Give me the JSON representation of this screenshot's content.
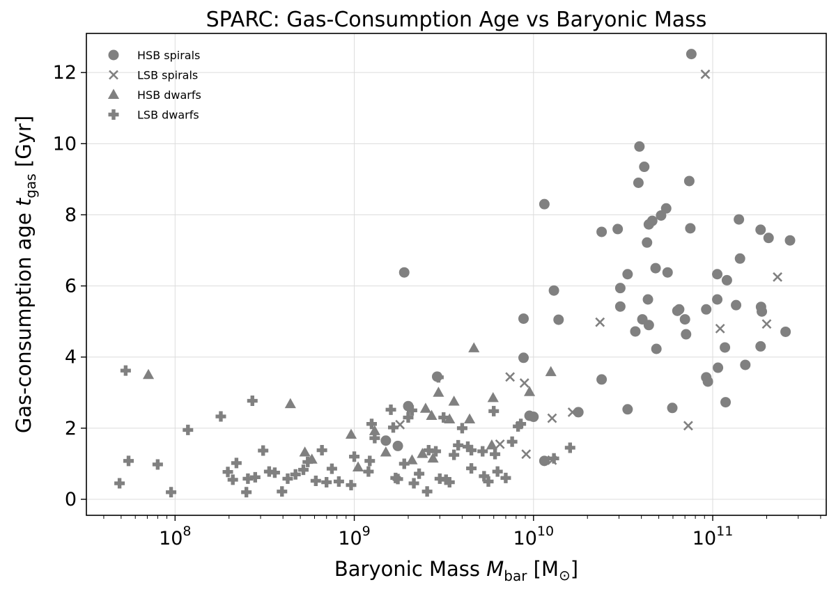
{
  "chart_data": {
    "type": "scatter",
    "title": "SPARC: Gas-Consumption Age vs Baryonic Mass",
    "xlabel": "Baryonic Mass M_bar [M☉]",
    "xlabel_parts": {
      "prefix": "Baryonic Mass ",
      "var": "M",
      "sub": "bar",
      "unit": " [M",
      "unit_sub": "⊙",
      "close": "]"
    },
    "ylabel": "Gas-consumption age t_gas [Gyr]",
    "ylabel_parts": {
      "prefix": "Gas-consumption age ",
      "var": "t",
      "sub": "gas",
      "unit": " [Gyr]"
    },
    "xscale": "log",
    "xlim": [
      32000000.0,
      430000000000.0
    ],
    "ylim": [
      -0.45,
      13.1
    ],
    "xticks": [
      {
        "value": 100000000.0,
        "base": "10",
        "exp": "8"
      },
      {
        "value": 1000000000.0,
        "base": "10",
        "exp": "9"
      },
      {
        "value": 10000000000.0,
        "base": "10",
        "exp": "10"
      },
      {
        "value": 100000000000.0,
        "base": "10",
        "exp": "11"
      }
    ],
    "yticks": [
      0,
      2,
      4,
      6,
      8,
      10,
      12
    ],
    "grid": true,
    "legend_position": "top-left",
    "marker_color": "#808080",
    "series": [
      {
        "name": "HSB spirals",
        "marker": "circle",
        "points": [
          [
            1900000000.0,
            6.38
          ],
          [
            2000000000.0,
            2.62
          ],
          [
            1750000000.0,
            1.5
          ],
          [
            1500000000.0,
            1.65
          ],
          [
            2900000000.0,
            3.45
          ],
          [
            8800000000.0,
            5.08
          ],
          [
            8800000000.0,
            3.98
          ],
          [
            9500000000.0,
            2.35
          ],
          [
            10000000000.0,
            2.32
          ],
          [
            11500000000.0,
            1.08
          ],
          [
            11500000000.0,
            8.3
          ],
          [
            13000000000.0,
            5.87
          ],
          [
            13800000000.0,
            5.05
          ],
          [
            17800000000.0,
            2.45
          ],
          [
            24000000000.0,
            7.52
          ],
          [
            24000000000.0,
            3.37
          ],
          [
            29500000000.0,
            7.6
          ],
          [
            30500000000.0,
            5.94
          ],
          [
            30500000000.0,
            5.42
          ],
          [
            33500000000.0,
            6.33
          ],
          [
            33500000000.0,
            2.53
          ],
          [
            37000000000.0,
            4.72
          ],
          [
            38500000000.0,
            8.9
          ],
          [
            39000000000.0,
            9.92
          ],
          [
            40500000000.0,
            5.06
          ],
          [
            41500000000.0,
            9.35
          ],
          [
            43000000000.0,
            7.22
          ],
          [
            43500000000.0,
            5.62
          ],
          [
            44000000000.0,
            4.9
          ],
          [
            44000000000.0,
            7.73
          ],
          [
            46000000000.0,
            7.83
          ],
          [
            48000000000.0,
            6.5
          ],
          [
            48500000000.0,
            4.23
          ],
          [
            51500000000.0,
            7.98
          ],
          [
            55000000000.0,
            8.18
          ],
          [
            56000000000.0,
            6.38
          ],
          [
            59500000000.0,
            2.57
          ],
          [
            63500000000.0,
            5.3
          ],
          [
            65000000000.0,
            5.34
          ],
          [
            70000000000.0,
            5.06
          ],
          [
            71000000000.0,
            4.64
          ],
          [
            74000000000.0,
            8.95
          ],
          [
            75000000000.0,
            7.62
          ],
          [
            76000000000.0,
            12.52
          ],
          [
            92000000000.0,
            5.34
          ],
          [
            92000000000.0,
            3.43
          ],
          [
            94000000000.0,
            3.31
          ],
          [
            106000000000.0,
            6.33
          ],
          [
            106000000000.0,
            5.62
          ],
          [
            107000000000.0,
            3.7
          ],
          [
            117000000000.0,
            4.27
          ],
          [
            118000000000.0,
            2.73
          ],
          [
            120000000000.0,
            6.16
          ],
          [
            135000000000.0,
            5.46
          ],
          [
            140000000000.0,
            7.87
          ],
          [
            142000000000.0,
            6.77
          ],
          [
            152000000000.0,
            3.78
          ],
          [
            185000000000.0,
            7.58
          ],
          [
            186000000000.0,
            5.41
          ],
          [
            188000000000.0,
            5.28
          ],
          [
            185000000000.0,
            4.3
          ],
          [
            205000000000.0,
            7.35
          ],
          [
            255000000000.0,
            4.71
          ],
          [
            270000000000.0,
            7.28
          ]
        ]
      },
      {
        "name": "LSB spirals",
        "marker": "x",
        "points": [
          [
            7400000000.0,
            3.44
          ],
          [
            8900000000.0,
            3.27
          ],
          [
            9100000000.0,
            1.27
          ],
          [
            6500000000.0,
            1.55
          ],
          [
            12700000000.0,
            2.28
          ],
          [
            12700000000.0,
            1.1
          ],
          [
            16500000000.0,
            2.45
          ],
          [
            23500000000.0,
            4.98
          ],
          [
            73000000000.0,
            2.07
          ],
          [
            91000000000.0,
            11.95
          ],
          [
            110000000000.0,
            4.8
          ],
          [
            200000000000.0,
            4.93
          ],
          [
            230000000000.0,
            6.25
          ],
          [
            1800000000.0,
            2.1
          ]
        ]
      },
      {
        "name": "HSB dwarfs",
        "marker": "triangle",
        "points": [
          [
            71000000.0,
            3.5
          ],
          [
            440000000.0,
            2.68
          ],
          [
            530000000.0,
            1.32
          ],
          [
            580000000.0,
            1.12
          ],
          [
            960000000.0,
            1.82
          ],
          [
            1050000000.0,
            0.9
          ],
          [
            1300000000.0,
            1.92
          ],
          [
            1500000000.0,
            1.32
          ],
          [
            2100000000.0,
            1.1
          ],
          [
            2500000000.0,
            2.55
          ],
          [
            2700000000.0,
            2.35
          ],
          [
            2750000000.0,
            1.15
          ],
          [
            2950000000.0,
            3.0
          ],
          [
            3400000000.0,
            2.25
          ],
          [
            3600000000.0,
            2.75
          ],
          [
            4400000000.0,
            2.25
          ],
          [
            4650000000.0,
            4.25
          ],
          [
            5850000000.0,
            1.52
          ],
          [
            5950000000.0,
            2.85
          ],
          [
            9500000000.0,
            3.02
          ],
          [
            12500000000.0,
            3.58
          ],
          [
            2400000000.0,
            1.28
          ]
        ]
      },
      {
        "name": "LSB dwarfs",
        "marker": "plus",
        "points": [
          [
            49000000.0,
            0.45
          ],
          [
            53000000.0,
            3.62
          ],
          [
            55000000.0,
            1.08
          ],
          [
            80000000.0,
            0.98
          ],
          [
            95000000.0,
            0.2
          ],
          [
            118000000.0,
            1.95
          ],
          [
            180000000.0,
            2.33
          ],
          [
            197000000.0,
            0.77
          ],
          [
            210000000.0,
            0.55
          ],
          [
            220000000.0,
            1.02
          ],
          [
            250000000.0,
            0.2
          ],
          [
            255000000.0,
            0.58
          ],
          [
            270000000.0,
            2.77
          ],
          [
            280000000.0,
            0.62
          ],
          [
            310000000.0,
            1.37
          ],
          [
            335000000.0,
            0.78
          ],
          [
            360000000.0,
            0.75
          ],
          [
            395000000.0,
            0.22
          ],
          [
            425000000.0,
            0.58
          ],
          [
            470000000.0,
            0.7
          ],
          [
            520000000.0,
            0.83
          ],
          [
            550000000.0,
            1.05
          ],
          [
            610000000.0,
            0.52
          ],
          [
            660000000.0,
            1.38
          ],
          [
            700000000.0,
            0.48
          ],
          [
            750000000.0,
            0.86
          ],
          [
            820000000.0,
            0.5
          ],
          [
            960000000.0,
            0.4
          ],
          [
            1000000000.0,
            1.2
          ],
          [
            1200000000.0,
            0.78
          ],
          [
            1220000000.0,
            1.08
          ],
          [
            1250000000.0,
            2.12
          ],
          [
            1300000000.0,
            1.72
          ],
          [
            1600000000.0,
            2.52
          ],
          [
            1650000000.0,
            2.02
          ],
          [
            1700000000.0,
            0.6
          ],
          [
            1750000000.0,
            0.57
          ],
          [
            1900000000.0,
            1.0
          ],
          [
            2000000000.0,
            2.3
          ],
          [
            2100000000.0,
            2.5
          ],
          [
            2150000000.0,
            0.45
          ],
          [
            2300000000.0,
            0.72
          ],
          [
            2550000000.0,
            0.22
          ],
          [
            2600000000.0,
            1.38
          ],
          [
            2850000000.0,
            1.35
          ],
          [
            2950000000.0,
            3.43
          ],
          [
            3000000000.0,
            0.58
          ],
          [
            3150000000.0,
            2.3
          ],
          [
            3250000000.0,
            0.55
          ],
          [
            3400000000.0,
            0.48
          ],
          [
            3600000000.0,
            1.25
          ],
          [
            3800000000.0,
            1.52
          ],
          [
            4000000000.0,
            2.0
          ],
          [
            4300000000.0,
            1.48
          ],
          [
            4500000000.0,
            0.87
          ],
          [
            4500000000.0,
            1.38
          ],
          [
            5200000000.0,
            1.35
          ],
          [
            5300000000.0,
            0.65
          ],
          [
            5600000000.0,
            0.5
          ],
          [
            6000000000.0,
            2.48
          ],
          [
            6100000000.0,
            1.27
          ],
          [
            6300000000.0,
            0.78
          ],
          [
            7000000000.0,
            0.6
          ],
          [
            7600000000.0,
            1.62
          ],
          [
            8200000000.0,
            2.05
          ],
          [
            13000000000.0,
            1.15
          ],
          [
            16000000000.0,
            1.45
          ],
          [
            8500000000.0,
            2.12
          ]
        ]
      }
    ]
  }
}
